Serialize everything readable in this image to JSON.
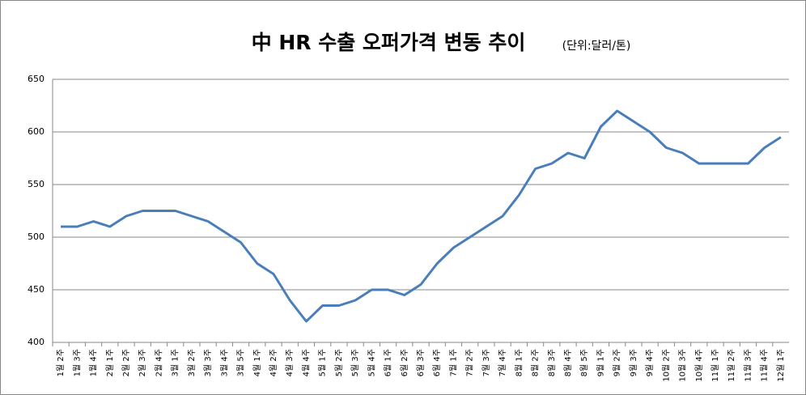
{
  "chart_data": {
    "type": "line",
    "title": "中 HR 수출 오퍼가격 변동 추이",
    "subtitle": "(단위:달러/톤)",
    "categories": [
      "1월 2주",
      "1월 3주",
      "1월 4주",
      "2월 1주",
      "2월 2주",
      "2월 3주",
      "2월 4주",
      "3월 1주",
      "3월 2주",
      "3월 3주",
      "3월 4주",
      "3월 5주",
      "4월 1주",
      "4월 2주",
      "4월 3주",
      "4월 4주",
      "5월 1주",
      "5월 2주",
      "5월 3주",
      "5월 4주",
      "6월 1주",
      "6월 2주",
      "6월 3주",
      "6월 4주",
      "7월 1주",
      "7월 2주",
      "7월 3주",
      "7월 4주",
      "8월 1주",
      "8월 2주",
      "8월 3주",
      "8월 4주",
      "8월 5주",
      "9월 1주",
      "9월 2주",
      "9월 3주",
      "9월 4주",
      "10월 2주",
      "10월 3주",
      "10월 4주",
      "11월 1주",
      "11월 2주",
      "11월 3주",
      "11월 4주",
      "12월 1주"
    ],
    "values": [
      510,
      510,
      515,
      510,
      520,
      525,
      525,
      525,
      520,
      515,
      505,
      495,
      475,
      465,
      440,
      420,
      435,
      435,
      440,
      450,
      450,
      445,
      455,
      475,
      490,
      500,
      510,
      520,
      540,
      565,
      570,
      580,
      575,
      605,
      620,
      610,
      600,
      585,
      580,
      570,
      570,
      570,
      570,
      585,
      595
    ],
    "color": "#4a7ebb",
    "ylim": [
      400,
      650
    ],
    "yticks": [
      400,
      450,
      500,
      550,
      600,
      650
    ],
    "grid": true
  }
}
